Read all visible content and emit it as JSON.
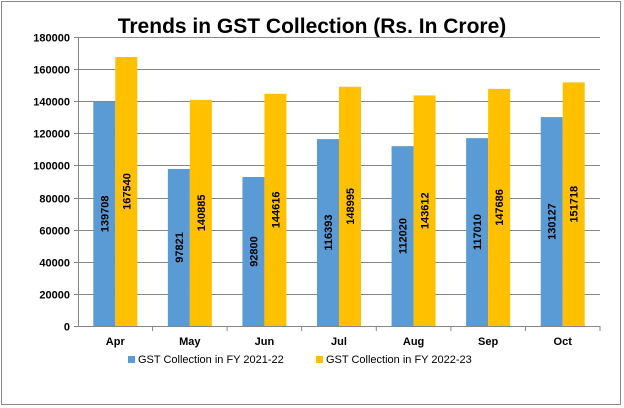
{
  "chart_data": {
    "type": "bar",
    "title": "Trends in GST Collection (Rs. In Crore)",
    "categories": [
      "Apr",
      "May",
      "Jun",
      "Jul",
      "Aug",
      "Sep",
      "Oct"
    ],
    "series": [
      {
        "name": "GST Collection in FY 2021-22",
        "color": "#5B9BD5",
        "values": [
          139708,
          97821,
          92800,
          116393,
          112020,
          117010,
          130127
        ]
      },
      {
        "name": "GST Collection in FY 2022-23",
        "color": "#FFC000",
        "values": [
          167540,
          140885,
          144616,
          148995,
          143612,
          147686,
          151718
        ]
      }
    ],
    "ylim": [
      0,
      180000
    ],
    "yticks": [
      0,
      20000,
      40000,
      60000,
      80000,
      100000,
      120000,
      140000,
      160000,
      180000
    ],
    "grid": true,
    "legend": "bottom",
    "data_labels": "inside-rotated"
  }
}
